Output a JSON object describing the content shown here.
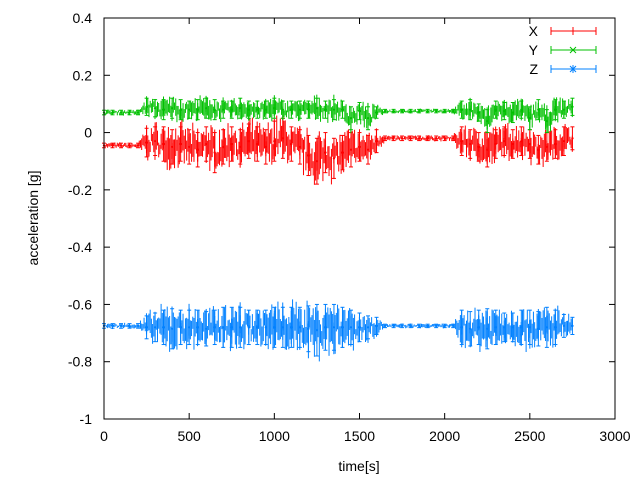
{
  "chart_data": {
    "type": "line",
    "title": "",
    "xlabel": "time[s]",
    "ylabel": "acceleration [g]",
    "xlim": [
      0,
      3000
    ],
    "ylim": [
      -1,
      0.4
    ],
    "xticks": [
      "0",
      "500",
      "1000",
      "1500",
      "2000",
      "2500",
      "3000"
    ],
    "yticks": [
      "0.4",
      "0.2",
      "0",
      "-0.2",
      "-0.4",
      "-0.6",
      "-0.8",
      "-1"
    ],
    "grid": false,
    "legend_position": "top-right",
    "error_bars": true,
    "x": [
      0,
      50,
      100,
      150,
      200,
      250,
      300,
      350,
      400,
      450,
      500,
      550,
      600,
      650,
      700,
      750,
      800,
      850,
      900,
      950,
      1000,
      1050,
      1100,
      1150,
      1200,
      1250,
      1300,
      1350,
      1400,
      1450,
      1500,
      1550,
      1600,
      1650,
      1700,
      1750,
      1800,
      1850,
      1900,
      1950,
      2000,
      2050,
      2100,
      2150,
      2200,
      2250,
      2300,
      2350,
      2400,
      2450,
      2500,
      2550,
      2600,
      2650,
      2700,
      2750
    ],
    "series": [
      {
        "name": "X",
        "color": "#ff0000",
        "marker": "plus",
        "values": [
          -0.045,
          -0.045,
          -0.045,
          -0.045,
          -0.045,
          -0.035,
          -0.03,
          -0.04,
          -0.05,
          -0.04,
          -0.05,
          -0.06,
          -0.04,
          -0.07,
          -0.05,
          -0.04,
          -0.05,
          -0.03,
          -0.04,
          -0.05,
          -0.03,
          -0.02,
          -0.04,
          -0.05,
          -0.08,
          -0.1,
          -0.07,
          -0.09,
          -0.07,
          -0.06,
          -0.05,
          -0.06,
          -0.03,
          -0.02,
          -0.02,
          -0.02,
          -0.02,
          -0.02,
          -0.02,
          -0.02,
          -0.02,
          -0.02,
          -0.03,
          -0.04,
          -0.05,
          -0.06,
          -0.04,
          -0.03,
          -0.04,
          -0.03,
          -0.04,
          -0.06,
          -0.05,
          -0.04,
          -0.03,
          -0.02
        ],
        "errors": [
          0.008,
          0.008,
          0.008,
          0.008,
          0.008,
          0.05,
          0.05,
          0.06,
          0.06,
          0.06,
          0.06,
          0.06,
          0.06,
          0.07,
          0.06,
          0.06,
          0.06,
          0.06,
          0.06,
          0.06,
          0.07,
          0.07,
          0.06,
          0.06,
          0.07,
          0.08,
          0.07,
          0.07,
          0.06,
          0.06,
          0.05,
          0.05,
          0.04,
          0.008,
          0.008,
          0.008,
          0.008,
          0.008,
          0.008,
          0.008,
          0.008,
          0.008,
          0.05,
          0.05,
          0.05,
          0.06,
          0.05,
          0.05,
          0.05,
          0.05,
          0.05,
          0.05,
          0.05,
          0.05,
          0.05,
          0.04
        ]
      },
      {
        "name": "Y",
        "color": "#00c000",
        "marker": "cross",
        "values": [
          0.07,
          0.07,
          0.07,
          0.07,
          0.07,
          0.09,
          0.085,
          0.08,
          0.085,
          0.08,
          0.08,
          0.08,
          0.085,
          0.08,
          0.08,
          0.08,
          0.085,
          0.08,
          0.08,
          0.08,
          0.085,
          0.08,
          0.08,
          0.08,
          0.08,
          0.085,
          0.08,
          0.08,
          0.08,
          0.05,
          0.075,
          0.05,
          0.07,
          0.075,
          0.075,
          0.075,
          0.075,
          0.075,
          0.075,
          0.075,
          0.075,
          0.075,
          0.08,
          0.08,
          0.07,
          0.04,
          0.08,
          0.075,
          0.07,
          0.08,
          0.05,
          0.08,
          0.04,
          0.08,
          0.08,
          0.09
        ],
        "errors": [
          0.008,
          0.008,
          0.008,
          0.008,
          0.008,
          0.03,
          0.03,
          0.035,
          0.035,
          0.035,
          0.03,
          0.035,
          0.035,
          0.035,
          0.03,
          0.03,
          0.035,
          0.03,
          0.03,
          0.03,
          0.035,
          0.03,
          0.03,
          0.03,
          0.03,
          0.035,
          0.03,
          0.035,
          0.03,
          0.04,
          0.03,
          0.04,
          0.02,
          0.006,
          0.006,
          0.006,
          0.006,
          0.006,
          0.006,
          0.006,
          0.006,
          0.006,
          0.03,
          0.035,
          0.03,
          0.04,
          0.03,
          0.03,
          0.035,
          0.03,
          0.04,
          0.035,
          0.04,
          0.035,
          0.03,
          0.03
        ]
      },
      {
        "name": "Z",
        "color": "#0080ff",
        "marker": "star",
        "values": [
          -0.675,
          -0.675,
          -0.675,
          -0.675,
          -0.675,
          -0.68,
          -0.68,
          -0.68,
          -0.685,
          -0.68,
          -0.68,
          -0.68,
          -0.685,
          -0.68,
          -0.68,
          -0.68,
          -0.68,
          -0.68,
          -0.68,
          -0.68,
          -0.68,
          -0.68,
          -0.68,
          -0.68,
          -0.685,
          -0.69,
          -0.68,
          -0.68,
          -0.68,
          -0.68,
          -0.68,
          -0.68,
          -0.675,
          -0.675,
          -0.675,
          -0.675,
          -0.675,
          -0.675,
          -0.675,
          -0.675,
          -0.675,
          -0.675,
          -0.68,
          -0.685,
          -0.68,
          -0.685,
          -0.68,
          -0.68,
          -0.68,
          -0.68,
          -0.68,
          -0.685,
          -0.68,
          -0.68,
          -0.675,
          -0.675
        ],
        "errors": [
          0.008,
          0.008,
          0.008,
          0.008,
          0.008,
          0.04,
          0.05,
          0.06,
          0.07,
          0.06,
          0.06,
          0.06,
          0.06,
          0.06,
          0.07,
          0.07,
          0.07,
          0.06,
          0.06,
          0.06,
          0.07,
          0.07,
          0.07,
          0.07,
          0.08,
          0.09,
          0.08,
          0.08,
          0.07,
          0.06,
          0.05,
          0.04,
          0.03,
          0.006,
          0.006,
          0.006,
          0.006,
          0.006,
          0.006,
          0.006,
          0.006,
          0.006,
          0.06,
          0.06,
          0.06,
          0.07,
          0.06,
          0.05,
          0.05,
          0.06,
          0.06,
          0.06,
          0.07,
          0.06,
          0.04,
          0.03
        ]
      }
    ]
  }
}
